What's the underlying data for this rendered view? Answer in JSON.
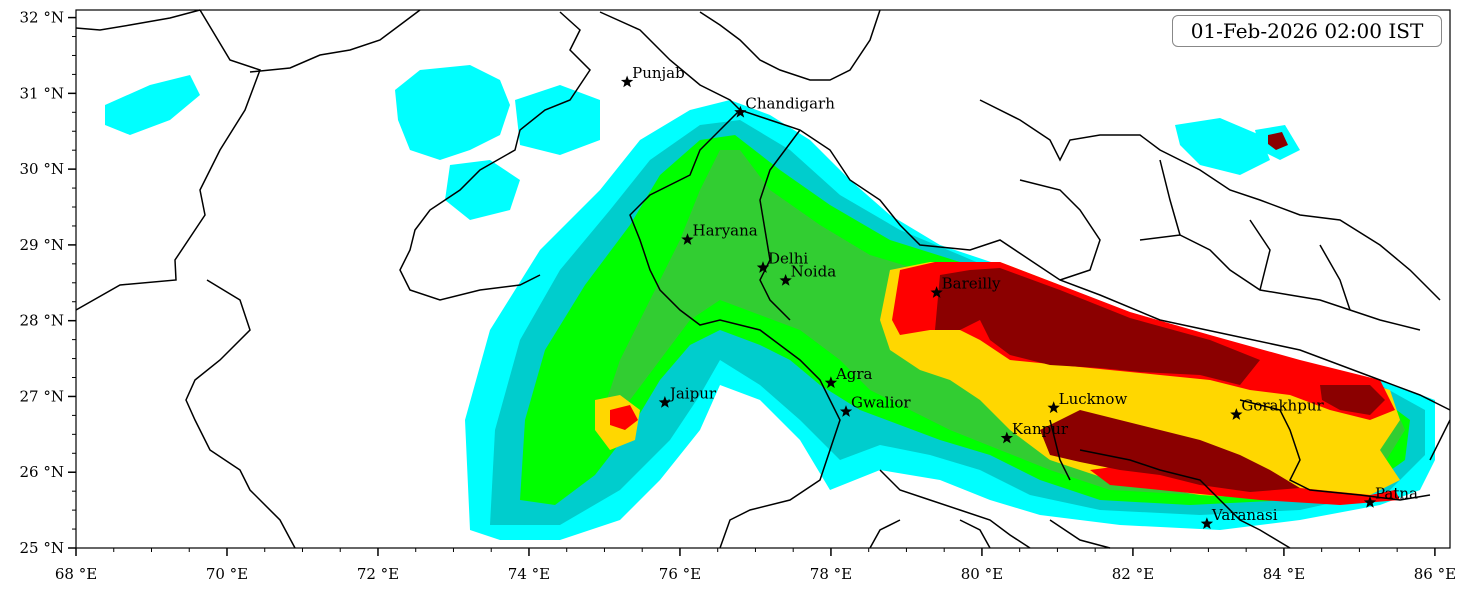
{
  "timestamp": "01-Feb-2026 02:00 IST",
  "axes": {
    "lon_ticks": [
      "68 °E",
      "70 °E",
      "72 °E",
      "74 °E",
      "76 °E",
      "78 °E",
      "80 °E",
      "82 °E",
      "84 °E",
      "86 °E"
    ],
    "lat_ticks": [
      "25 °N",
      "26 °N",
      "27 °N",
      "28 °N",
      "29 °N",
      "30 °N",
      "31 °N",
      "32 °N"
    ],
    "lon_range": [
      68,
      86.2
    ],
    "lat_range": [
      25,
      32.1
    ]
  },
  "colors": {
    "shade1": "#00ffff",
    "shade2": "#00cdcd",
    "shade3": "#00ff00",
    "shade4": "#32cd32",
    "shade5": "#ffd700",
    "shade6": "#ff0000",
    "shade7": "#8b0000"
  },
  "cities": [
    {
      "name": "Punjab",
      "lon": 75.3,
      "lat": 31.15
    },
    {
      "name": "Chandigarh",
      "lon": 76.8,
      "lat": 30.75
    },
    {
      "name": "Haryana",
      "lon": 76.1,
      "lat": 29.07
    },
    {
      "name": "Delhi",
      "lon": 77.1,
      "lat": 28.7
    },
    {
      "name": "Noida",
      "lon": 77.4,
      "lat": 28.53
    },
    {
      "name": "Bareilly",
      "lon": 79.4,
      "lat": 28.37
    },
    {
      "name": "Agra",
      "lon": 78.0,
      "lat": 27.18
    },
    {
      "name": "Jaipur",
      "lon": 75.8,
      "lat": 26.92
    },
    {
      "name": "Gwalior",
      "lon": 78.2,
      "lat": 26.8
    },
    {
      "name": "Lucknow",
      "lon": 80.95,
      "lat": 26.85
    },
    {
      "name": "Gorakhpur",
      "lon": 83.37,
      "lat": 26.76
    },
    {
      "name": "Kanpur",
      "lon": 80.33,
      "lat": 26.45
    },
    {
      "name": "Varanasi",
      "lon": 82.98,
      "lat": 25.32
    },
    {
      "name": "Patna",
      "lon": 85.14,
      "lat": 25.6
    }
  ]
}
